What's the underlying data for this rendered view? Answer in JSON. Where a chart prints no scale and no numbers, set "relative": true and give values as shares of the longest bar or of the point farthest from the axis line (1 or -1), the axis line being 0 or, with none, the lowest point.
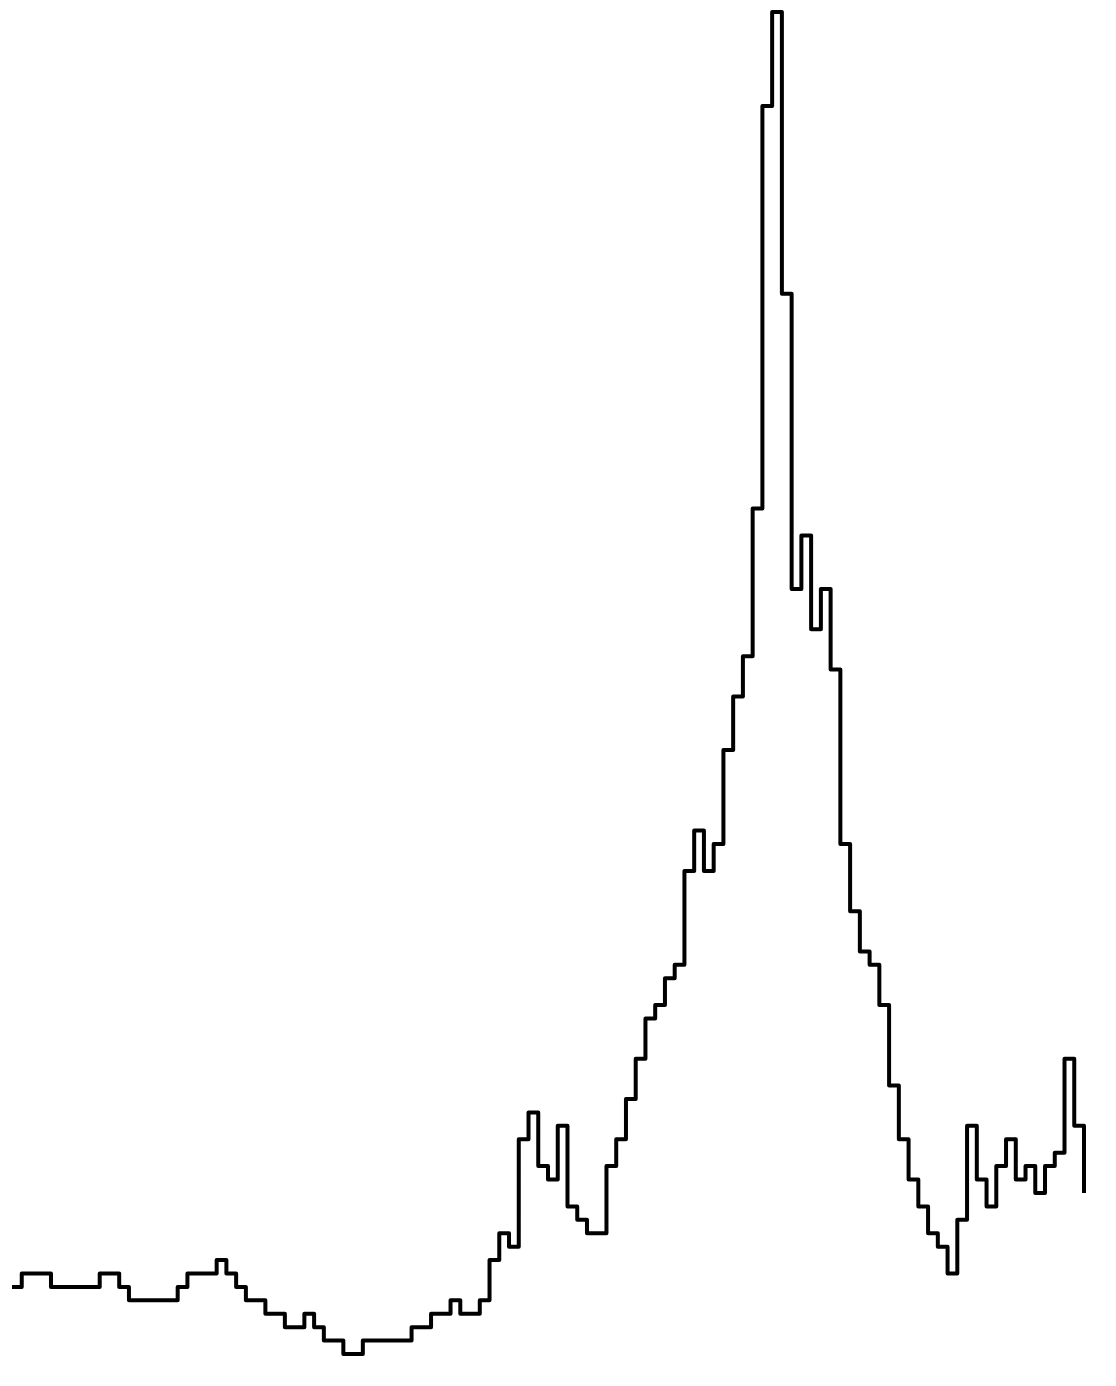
{
  "chart_data": {
    "type": "step",
    "relative": true,
    "categories": [
      null,
      null,
      null,
      null,
      null,
      null,
      null,
      null,
      null,
      null,
      null,
      null,
      null,
      null,
      null,
      null,
      null,
      null,
      null,
      null,
      null,
      null,
      null,
      null,
      null,
      null,
      null,
      null,
      null,
      null,
      null,
      null,
      null,
      null,
      null,
      null,
      null,
      null,
      null,
      null,
      null,
      null,
      null,
      null,
      null,
      null,
      null,
      null,
      null,
      null,
      null,
      null,
      null,
      null,
      null,
      null,
      null,
      null,
      null,
      null,
      null,
      null,
      null,
      null,
      null,
      null,
      null,
      null,
      null,
      null,
      null,
      null,
      null,
      null,
      null,
      null,
      null,
      null,
      null,
      null,
      null,
      null,
      null,
      null,
      null,
      null,
      null,
      null,
      null,
      null,
      null,
      null,
      null,
      null,
      null,
      null,
      null,
      null,
      null,
      null,
      null,
      null,
      null,
      null,
      null,
      null,
      null,
      null,
      null,
      null,
      null
    ],
    "series": [
      {
        "color": "#000000",
        "values": [
          0.05,
          0.06,
          0.06,
          0.06,
          0.05,
          0.05,
          0.05,
          0.05,
          0.05,
          0.06,
          0.06,
          0.05,
          0.04,
          0.04,
          0.04,
          0.04,
          0.04,
          0.05,
          0.06,
          0.06,
          0.06,
          0.07,
          0.06,
          0.05,
          0.04,
          0.04,
          0.03,
          0.03,
          0.02,
          0.02,
          0.03,
          0.02,
          0.01,
          0.01,
          0,
          0,
          0.01,
          0.01,
          0.01,
          0.01,
          0.01,
          0.02,
          0.02,
          0.03,
          0.03,
          0.04,
          0.03,
          0.03,
          0.04,
          0.07,
          0.09,
          0.08,
          0.16,
          0.18,
          0.14,
          0.13,
          0.17,
          0.11,
          0.1,
          0.09,
          0.09,
          0.14,
          0.16,
          0.19,
          0.22,
          0.25,
          0.26,
          0.28,
          0.29,
          0.36,
          0.39,
          0.36,
          0.38,
          0.45,
          0.49,
          0.52,
          0.63,
          0.93,
          1,
          0.79,
          0.57,
          0.61,
          0.54,
          0.57,
          0.51,
          0.38,
          0.33,
          0.3,
          0.29,
          0.26,
          0.2,
          0.16,
          0.13,
          0.11,
          0.09,
          0.08,
          0.06,
          0.1,
          0.17,
          0.13,
          0.11,
          0.14,
          0.16,
          0.13,
          0.14,
          0.12,
          0.14,
          0.15,
          0.22,
          0.17,
          0.12
        ]
      }
    ]
  }
}
